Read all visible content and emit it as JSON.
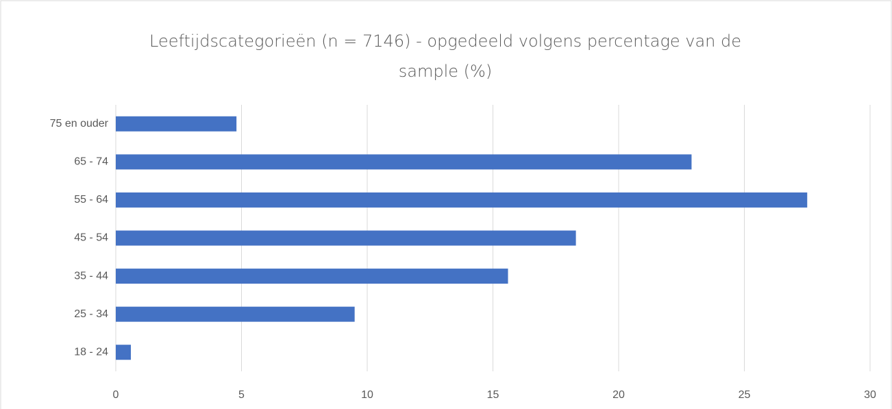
{
  "chart_data": {
    "type": "barh",
    "title": "Leeftijdscategorieën (n = 7146) - opgedeeld volgens percentage van de sample (%)",
    "categories": [
      "75 en ouder",
      "65 - 74",
      "55 - 64",
      "45 - 54",
      "35 - 44",
      "25 - 34",
      "18 - 24"
    ],
    "values": [
      4.8,
      22.9,
      27.5,
      18.3,
      15.6,
      9.5,
      0.6
    ],
    "color": "#4472c4",
    "xlim": [
      0,
      30
    ],
    "xticks": [
      0,
      5,
      10,
      15,
      20,
      25,
      30
    ],
    "grid": true
  }
}
